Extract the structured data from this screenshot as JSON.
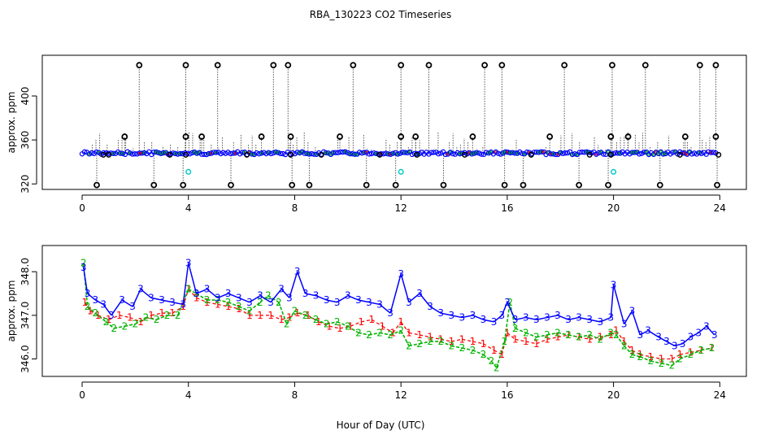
{
  "title": "RBA_130223  CO2 Timeseries",
  "xlabel": "Hour of Day (UTC)",
  "colors": {
    "raw": "#000000",
    "cal": "#00c8c8",
    "s1": "#ff0000",
    "s2": "#00b400",
    "s3": "#0000ff",
    "frame": "#000000"
  },
  "chart_data": [
    {
      "type": "scatter",
      "name": "top-panel",
      "ylabel": "approx. ppm",
      "xlim": [
        -1.5,
        25
      ],
      "ylim": [
        315,
        437
      ],
      "xticks": [
        0,
        4,
        8,
        12,
        16,
        20,
        24
      ],
      "yticks": [
        320,
        360,
        400
      ],
      "baseline": 348,
      "spikes_high": [
        2.15,
        3.9,
        5.1,
        7.2,
        7.75,
        10.2,
        12.0,
        13.05,
        15.15,
        15.8,
        18.15,
        19.95,
        21.2,
        23.25,
        23.85
      ],
      "spikes_low": [
        0.55,
        2.7,
        3.8,
        5.6,
        7.9,
        8.55,
        10.7,
        11.8,
        13.6,
        15.9,
        16.6,
        18.7,
        19.8,
        21.75,
        23.9
      ],
      "spikes_mid": [
        1.6,
        3.9,
        4.5,
        6.75,
        7.85,
        9.7,
        12.0,
        12.55,
        14.7,
        17.6,
        19.9,
        20.55,
        22.7,
        23.85
      ],
      "cal_points": [
        [
          4.0,
          331
        ],
        [
          12.0,
          331
        ],
        [
          20.0,
          331
        ]
      ]
    },
    {
      "type": "line",
      "name": "bottom-panel",
      "ylabel": "approx. ppm",
      "xlim": [
        -1.5,
        25
      ],
      "ylim": [
        345.6,
        348.6
      ],
      "xticks": [
        0,
        4,
        8,
        12,
        16,
        20,
        24
      ],
      "yticks": [
        346.0,
        347.0,
        348.0
      ],
      "series": [
        {
          "name": "1",
          "points": [
            [
              0.1,
              347.3
            ],
            [
              0.3,
              347.1
            ],
            [
              0.6,
              347.0
            ],
            [
              1.0,
              346.9
            ],
            [
              1.4,
              347.0
            ],
            [
              1.8,
              346.95
            ],
            [
              2.2,
              346.85
            ],
            [
              2.6,
              347.0
            ],
            [
              3.0,
              347.05
            ],
            [
              3.4,
              347.05
            ],
            [
              3.8,
              347.2
            ],
            [
              4.0,
              347.6
            ],
            [
              4.3,
              347.4
            ],
            [
              4.7,
              347.3
            ],
            [
              5.1,
              347.25
            ],
            [
              5.5,
              347.2
            ],
            [
              5.9,
              347.15
            ],
            [
              6.3,
              347.0
            ],
            [
              6.7,
              347.0
            ],
            [
              7.1,
              347.0
            ],
            [
              7.5,
              346.9
            ],
            [
              7.8,
              346.95
            ],
            [
              8.1,
              347.05
            ],
            [
              8.5,
              347.0
            ],
            [
              8.9,
              346.85
            ],
            [
              9.3,
              346.75
            ],
            [
              9.7,
              346.7
            ],
            [
              10.1,
              346.75
            ],
            [
              10.5,
              346.85
            ],
            [
              10.9,
              346.9
            ],
            [
              11.3,
              346.75
            ],
            [
              11.7,
              346.6
            ],
            [
              12.0,
              346.85
            ],
            [
              12.3,
              346.6
            ],
            [
              12.7,
              346.55
            ],
            [
              13.1,
              346.5
            ],
            [
              13.5,
              346.45
            ],
            [
              13.9,
              346.4
            ],
            [
              14.3,
              346.45
            ],
            [
              14.7,
              346.4
            ],
            [
              15.1,
              346.35
            ],
            [
              15.5,
              346.2
            ],
            [
              15.8,
              346.1
            ],
            [
              16.0,
              346.6
            ],
            [
              16.3,
              346.45
            ],
            [
              16.7,
              346.4
            ],
            [
              17.1,
              346.35
            ],
            [
              17.5,
              346.45
            ],
            [
              17.9,
              346.5
            ],
            [
              18.3,
              346.55
            ],
            [
              18.7,
              346.5
            ],
            [
              19.1,
              346.45
            ],
            [
              19.5,
              346.5
            ],
            [
              19.9,
              346.55
            ],
            [
              20.1,
              346.65
            ],
            [
              20.4,
              346.4
            ],
            [
              20.7,
              346.2
            ],
            [
              21.0,
              346.1
            ],
            [
              21.4,
              346.05
            ],
            [
              21.8,
              346.0
            ],
            [
              22.2,
              346.0
            ],
            [
              22.5,
              346.1
            ],
            [
              22.9,
              346.15
            ],
            [
              23.3,
              346.2
            ],
            [
              23.7,
              346.25
            ]
          ]
        },
        {
          "name": "2",
          "points": [
            [
              0.05,
              348.2
            ],
            [
              0.2,
              347.2
            ],
            [
              0.5,
              347.05
            ],
            [
              0.9,
              346.85
            ],
            [
              1.2,
              346.7
            ],
            [
              1.6,
              346.75
            ],
            [
              2.0,
              346.8
            ],
            [
              2.4,
              346.95
            ],
            [
              2.8,
              346.9
            ],
            [
              3.2,
              347.0
            ],
            [
              3.6,
              347.0
            ],
            [
              4.0,
              347.6
            ],
            [
              4.3,
              347.5
            ],
            [
              4.7,
              347.35
            ],
            [
              5.1,
              347.35
            ],
            [
              5.5,
              347.3
            ],
            [
              5.9,
              347.2
            ],
            [
              6.3,
              347.1
            ],
            [
              6.7,
              347.3
            ],
            [
              7.0,
              347.45
            ],
            [
              7.4,
              347.3
            ],
            [
              7.7,
              346.8
            ],
            [
              8.0,
              347.1
            ],
            [
              8.4,
              347.0
            ],
            [
              8.8,
              346.9
            ],
            [
              9.2,
              346.8
            ],
            [
              9.6,
              346.85
            ],
            [
              10.0,
              346.75
            ],
            [
              10.4,
              346.6
            ],
            [
              10.8,
              346.55
            ],
            [
              11.2,
              346.6
            ],
            [
              11.6,
              346.55
            ],
            [
              12.0,
              346.65
            ],
            [
              12.3,
              346.3
            ],
            [
              12.7,
              346.35
            ],
            [
              13.1,
              346.4
            ],
            [
              13.5,
              346.4
            ],
            [
              13.9,
              346.3
            ],
            [
              14.3,
              346.25
            ],
            [
              14.7,
              346.2
            ],
            [
              15.1,
              346.1
            ],
            [
              15.4,
              345.95
            ],
            [
              15.6,
              345.8
            ],
            [
              15.9,
              346.4
            ],
            [
              16.1,
              347.3
            ],
            [
              16.3,
              346.7
            ],
            [
              16.7,
              346.6
            ],
            [
              17.1,
              346.5
            ],
            [
              17.5,
              346.55
            ],
            [
              17.9,
              346.6
            ],
            [
              18.3,
              346.55
            ],
            [
              18.7,
              346.5
            ],
            [
              19.1,
              346.55
            ],
            [
              19.5,
              346.45
            ],
            [
              19.9,
              346.6
            ],
            [
              20.1,
              346.55
            ],
            [
              20.4,
              346.3
            ],
            [
              20.7,
              346.1
            ],
            [
              21.0,
              346.05
            ],
            [
              21.4,
              345.95
            ],
            [
              21.8,
              345.9
            ],
            [
              22.2,
              345.85
            ],
            [
              22.5,
              346.0
            ],
            [
              22.9,
              346.1
            ],
            [
              23.3,
              346.2
            ],
            [
              23.7,
              346.25
            ]
          ]
        },
        {
          "name": "3",
          "points": [
            [
              0.05,
              348.1
            ],
            [
              0.2,
              347.5
            ],
            [
              0.5,
              347.35
            ],
            [
              0.8,
              347.25
            ],
            [
              1.1,
              347.0
            ],
            [
              1.5,
              347.35
            ],
            [
              1.9,
              347.2
            ],
            [
              2.2,
              347.6
            ],
            [
              2.6,
              347.4
            ],
            [
              3.0,
              347.35
            ],
            [
              3.4,
              347.3
            ],
            [
              3.8,
              347.25
            ],
            [
              4.0,
              348.2
            ],
            [
              4.3,
              347.5
            ],
            [
              4.7,
              347.6
            ],
            [
              5.1,
              347.4
            ],
            [
              5.5,
              347.5
            ],
            [
              5.9,
              347.4
            ],
            [
              6.3,
              347.3
            ],
            [
              6.7,
              347.45
            ],
            [
              7.1,
              347.3
            ],
            [
              7.5,
              347.6
            ],
            [
              7.8,
              347.4
            ],
            [
              8.1,
              348.0
            ],
            [
              8.4,
              347.5
            ],
            [
              8.8,
              347.45
            ],
            [
              9.2,
              347.35
            ],
            [
              9.6,
              347.3
            ],
            [
              10.0,
              347.45
            ],
            [
              10.4,
              347.35
            ],
            [
              10.8,
              347.3
            ],
            [
              11.2,
              347.25
            ],
            [
              11.6,
              347.05
            ],
            [
              12.0,
              347.95
            ],
            [
              12.3,
              347.3
            ],
            [
              12.7,
              347.5
            ],
            [
              13.1,
              347.2
            ],
            [
              13.5,
              347.05
            ],
            [
              13.9,
              347.0
            ],
            [
              14.3,
              346.95
            ],
            [
              14.7,
              347.0
            ],
            [
              15.1,
              346.9
            ],
            [
              15.5,
              346.85
            ],
            [
              15.8,
              347.0
            ],
            [
              16.0,
              347.3
            ],
            [
              16.3,
              346.9
            ],
            [
              16.7,
              346.95
            ],
            [
              17.1,
              346.9
            ],
            [
              17.5,
              346.95
            ],
            [
              17.9,
              347.0
            ],
            [
              18.3,
              346.9
            ],
            [
              18.7,
              346.95
            ],
            [
              19.1,
              346.9
            ],
            [
              19.5,
              346.85
            ],
            [
              19.9,
              346.95
            ],
            [
              20.0,
              347.7
            ],
            [
              20.4,
              346.8
            ],
            [
              20.7,
              347.1
            ],
            [
              21.0,
              346.55
            ],
            [
              21.3,
              346.65
            ],
            [
              21.7,
              346.5
            ],
            [
              22.0,
              346.4
            ],
            [
              22.3,
              346.3
            ],
            [
              22.6,
              346.35
            ],
            [
              22.9,
              346.5
            ],
            [
              23.2,
              346.6
            ],
            [
              23.5,
              346.75
            ],
            [
              23.8,
              346.55
            ]
          ]
        }
      ]
    }
  ]
}
